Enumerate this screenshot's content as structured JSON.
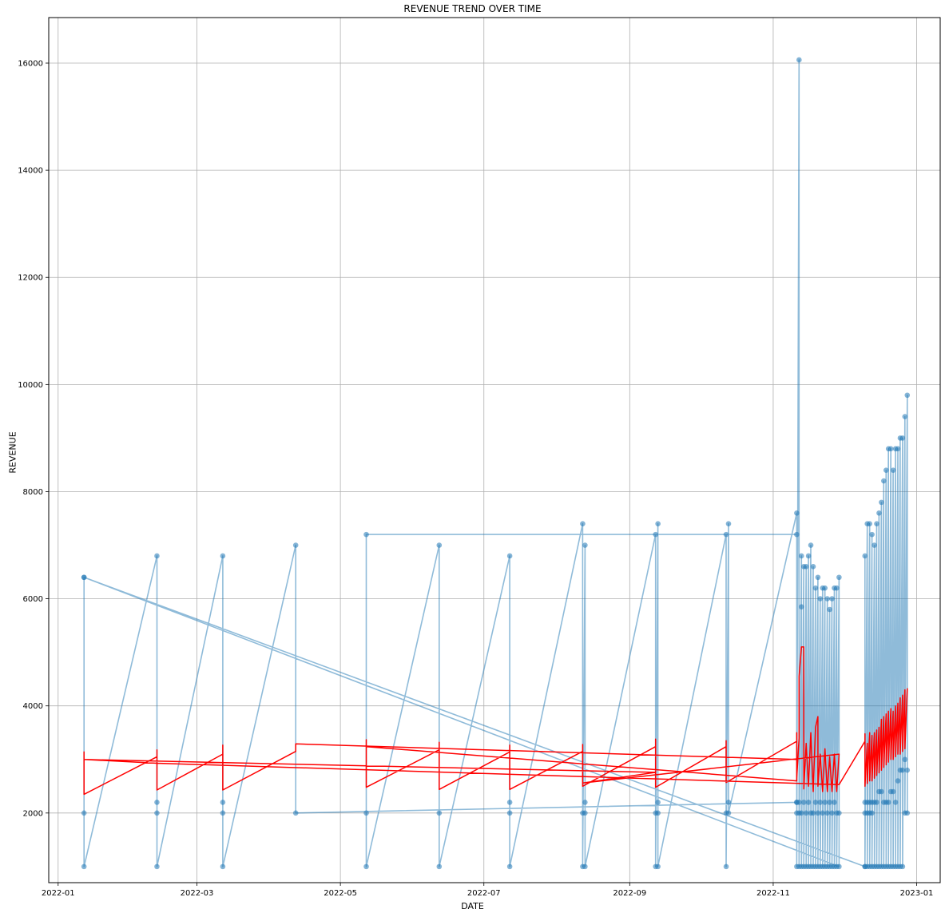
{
  "chart_data": {
    "type": "line",
    "title": "REVENUE TREND OVER TIME",
    "xlabel": "DATE",
    "ylabel": "REVENUE",
    "grid": true,
    "legend": "none",
    "x_axis_type": "date",
    "xlim": [
      "2021-12-28",
      "2023-01-11"
    ],
    "ylim": [
      700,
      16850
    ],
    "x_ticks": [
      "2022-01",
      "2022-03",
      "2022-05",
      "2022-07",
      "2022-09",
      "2022-11",
      "2023-01"
    ],
    "x_tick_dates": [
      "2022-01-01",
      "2022-03-01",
      "2022-05-01",
      "2022-07-01",
      "2022-09-01",
      "2022-11-01",
      "2023-01-01"
    ],
    "y_ticks": [
      2000,
      4000,
      6000,
      8000,
      10000,
      12000,
      14000,
      16000
    ],
    "colors": {
      "revenue": "#1f77b4",
      "trend": "#ff0000"
    },
    "series": [
      {
        "style": "line+markers",
        "points": [
          [
            "2022-01-12",
            6400
          ],
          [
            "2022-01-12",
            2000
          ],
          [
            "2022-01-12",
            1000
          ],
          [
            "2022-02-12",
            6800
          ],
          [
            "2022-02-12",
            2000
          ],
          [
            "2022-02-12",
            2200
          ],
          [
            "2022-02-12",
            1000
          ],
          [
            "2022-03-12",
            6800
          ],
          [
            "2022-03-12",
            2200
          ],
          [
            "2022-03-12",
            2000
          ],
          [
            "2022-03-12",
            1000
          ],
          [
            "2022-04-12",
            7000
          ],
          [
            "2022-04-12",
            2000
          ],
          [
            "2022-11-11",
            2200
          ],
          [
            "2022-11-11",
            7200
          ],
          [
            "2022-05-12",
            7200
          ],
          [
            "2022-05-12",
            2000
          ],
          [
            "2022-05-12",
            1000
          ],
          [
            "2022-06-12",
            7000
          ],
          [
            "2022-06-12",
            2000
          ],
          [
            "2022-06-12",
            1000
          ],
          [
            "2022-07-12",
            6800
          ],
          [
            "2022-07-12",
            2200
          ],
          [
            "2022-07-12",
            2000
          ],
          [
            "2022-07-12",
            1000
          ],
          [
            "2022-08-12",
            7400
          ],
          [
            "2022-08-12",
            2000
          ],
          [
            "2022-08-12",
            1000
          ],
          [
            "2022-08-13",
            7000
          ],
          [
            "2022-08-13",
            2200
          ],
          [
            "2022-08-13",
            2000
          ],
          [
            "2022-08-13",
            1000
          ],
          [
            "2022-09-12",
            7200
          ],
          [
            "2022-09-12",
            2000
          ],
          [
            "2022-09-12",
            1000
          ],
          [
            "2022-09-13",
            7400
          ],
          [
            "2022-09-13",
            2200
          ],
          [
            "2022-09-13",
            2000
          ],
          [
            "2022-09-13",
            1000
          ],
          [
            "2022-10-12",
            7200
          ],
          [
            "2022-10-12",
            2000
          ],
          [
            "2022-10-12",
            1000
          ],
          [
            "2022-10-13",
            7400
          ],
          [
            "2022-10-13",
            2200
          ],
          [
            "2022-10-13",
            2000
          ],
          [
            "2022-11-11",
            7600
          ],
          [
            "2022-11-11",
            2200
          ],
          [
            "2022-11-11",
            2000
          ],
          [
            "2022-11-11",
            1000
          ],
          [
            "2022-11-12",
            16060
          ],
          [
            "2022-11-12",
            2200
          ],
          [
            "2022-11-12",
            2000
          ],
          [
            "2022-11-12",
            1000
          ],
          [
            "2022-11-13",
            6800
          ],
          [
            "2022-11-13",
            5850
          ],
          [
            "2022-11-13",
            2000
          ],
          [
            "2022-11-13",
            1000
          ],
          [
            "2022-11-14",
            6600
          ],
          [
            "2022-11-14",
            2200
          ],
          [
            "2022-11-14",
            1000
          ],
          [
            "2022-11-15",
            6600
          ],
          [
            "2022-11-15",
            2000
          ],
          [
            "2022-11-15",
            1000
          ],
          [
            "2022-11-16",
            6800
          ],
          [
            "2022-11-16",
            2200
          ],
          [
            "2022-11-16",
            1000
          ],
          [
            "2022-11-17",
            7000
          ],
          [
            "2022-11-17",
            2000
          ],
          [
            "2022-11-17",
            1000
          ],
          [
            "2022-11-18",
            6600
          ],
          [
            "2022-11-18",
            2000
          ],
          [
            "2022-11-18",
            1000
          ],
          [
            "2022-11-19",
            6200
          ],
          [
            "2022-11-19",
            2200
          ],
          [
            "2022-11-19",
            1000
          ],
          [
            "2022-11-20",
            6400
          ],
          [
            "2022-11-20",
            2000
          ],
          [
            "2022-11-20",
            1000
          ],
          [
            "2022-11-21",
            6000
          ],
          [
            "2022-11-21",
            2200
          ],
          [
            "2022-11-21",
            1000
          ],
          [
            "2022-11-22",
            6200
          ],
          [
            "2022-11-22",
            2000
          ],
          [
            "2022-11-22",
            1000
          ],
          [
            "2022-11-23",
            6200
          ],
          [
            "2022-11-23",
            2200
          ],
          [
            "2022-11-23",
            1000
          ],
          [
            "2022-11-24",
            6000
          ],
          [
            "2022-11-24",
            2000
          ],
          [
            "2022-11-24",
            1000
          ],
          [
            "2022-11-25",
            5800
          ],
          [
            "2022-11-25",
            2200
          ],
          [
            "2022-11-25",
            1000
          ],
          [
            "2022-11-26",
            6000
          ],
          [
            "2022-11-26",
            2000
          ],
          [
            "2022-11-26",
            1000
          ],
          [
            "2022-11-27",
            6200
          ],
          [
            "2022-11-27",
            2200
          ],
          [
            "2022-11-27",
            1000
          ],
          [
            "2022-11-28",
            6200
          ],
          [
            "2022-11-28",
            2000
          ],
          [
            "2022-11-28",
            1000
          ],
          [
            "2022-11-29",
            6400
          ],
          [
            "2022-11-29",
            2000
          ],
          [
            "2022-11-29",
            1000
          ],
          [
            "2022-01-12",
            6400
          ],
          [
            "2022-12-10",
            1000
          ],
          [
            "2022-12-10",
            6800
          ],
          [
            "2022-12-10",
            2200
          ],
          [
            "2022-12-10",
            2000
          ],
          [
            "2022-12-10",
            1000
          ],
          [
            "2022-12-11",
            7400
          ],
          [
            "2022-12-11",
            2200
          ],
          [
            "2022-12-11",
            2000
          ],
          [
            "2022-12-11",
            1000
          ],
          [
            "2022-12-12",
            7400
          ],
          [
            "2022-12-12",
            2200
          ],
          [
            "2022-12-12",
            2000
          ],
          [
            "2022-12-12",
            1000
          ],
          [
            "2022-12-13",
            7200
          ],
          [
            "2022-12-13",
            2200
          ],
          [
            "2022-12-13",
            2000
          ],
          [
            "2022-12-13",
            1000
          ],
          [
            "2022-12-14",
            7000
          ],
          [
            "2022-12-14",
            2200
          ],
          [
            "2022-12-14",
            1000
          ],
          [
            "2022-12-15",
            7400
          ],
          [
            "2022-12-15",
            2200
          ],
          [
            "2022-12-15",
            1000
          ],
          [
            "2022-12-16",
            7600
          ],
          [
            "2022-12-16",
            2400
          ],
          [
            "2022-12-16",
            1000
          ],
          [
            "2022-12-17",
            7800
          ],
          [
            "2022-12-17",
            2400
          ],
          [
            "2022-12-17",
            1000
          ],
          [
            "2022-12-18",
            8200
          ],
          [
            "2022-12-18",
            2200
          ],
          [
            "2022-12-18",
            1000
          ],
          [
            "2022-12-19",
            8400
          ],
          [
            "2022-12-19",
            2200
          ],
          [
            "2022-12-19",
            1000
          ],
          [
            "2022-12-20",
            8800
          ],
          [
            "2022-12-20",
            2200
          ],
          [
            "2022-12-20",
            1000
          ],
          [
            "2022-12-21",
            8800
          ],
          [
            "2022-12-21",
            2400
          ],
          [
            "2022-12-21",
            1000
          ],
          [
            "2022-12-22",
            8400
          ],
          [
            "2022-12-22",
            2400
          ],
          [
            "2022-12-22",
            1000
          ],
          [
            "2022-12-23",
            8800
          ],
          [
            "2022-12-23",
            2200
          ],
          [
            "2022-12-23",
            1000
          ],
          [
            "2022-12-24",
            8800
          ],
          [
            "2022-12-24",
            2600
          ],
          [
            "2022-12-24",
            1000
          ],
          [
            "2022-12-25",
            9000
          ],
          [
            "2022-12-25",
            2800
          ],
          [
            "2022-12-25",
            1000
          ],
          [
            "2022-12-26",
            9000
          ],
          [
            "2022-12-26",
            2800
          ],
          [
            "2022-12-26",
            1000
          ],
          [
            "2022-12-27",
            9400
          ],
          [
            "2022-12-27",
            3000
          ],
          [
            "2022-12-27",
            2000
          ],
          [
            "2022-12-28",
            9800
          ],
          [
            "2022-12-28",
            2800
          ],
          [
            "2022-12-28",
            2000
          ]
        ]
      },
      {
        "style": "line",
        "points": [
          [
            "2022-01-12",
            3150
          ],
          [
            "2022-01-12",
            2350
          ],
          [
            "2022-02-12",
            3050
          ],
          [
            "2022-02-12",
            3180
          ],
          [
            "2022-02-12",
            2430
          ],
          [
            "2022-03-12",
            3100
          ],
          [
            "2022-03-12",
            3270
          ],
          [
            "2022-03-12",
            2430
          ],
          [
            "2022-04-12",
            3150
          ],
          [
            "2022-04-12",
            3290
          ],
          [
            "2022-11-11",
            3000
          ],
          [
            "2022-11-11",
            2600
          ],
          [
            "2022-05-12",
            3240
          ],
          [
            "2022-05-12",
            3370
          ],
          [
            "2022-05-12",
            2480
          ],
          [
            "2022-06-12",
            3180
          ],
          [
            "2022-06-12",
            3320
          ],
          [
            "2022-06-12",
            2440
          ],
          [
            "2022-07-12",
            3140
          ],
          [
            "2022-07-12",
            3270
          ],
          [
            "2022-07-12",
            2440
          ],
          [
            "2022-08-12",
            3150
          ],
          [
            "2022-08-12",
            3280
          ],
          [
            "2022-08-12",
            2500
          ],
          [
            "2022-09-12",
            3240
          ],
          [
            "2022-09-12",
            3380
          ],
          [
            "2022-09-12",
            2480
          ],
          [
            "2022-10-12",
            3240
          ],
          [
            "2022-10-12",
            3350
          ],
          [
            "2022-10-12",
            2570
          ],
          [
            "2022-11-11",
            3340
          ],
          [
            "2022-11-11",
            3500
          ],
          [
            "2022-11-11",
            2650
          ],
          [
            "2022-11-12",
            3400
          ],
          [
            "2022-11-12",
            4550
          ],
          [
            "2022-11-13",
            5100
          ],
          [
            "2022-11-14",
            5100
          ],
          [
            "2022-11-14",
            2450
          ],
          [
            "2022-11-15",
            3300
          ],
          [
            "2022-11-16",
            2500
          ],
          [
            "2022-11-17",
            3500
          ],
          [
            "2022-11-18",
            2400
          ],
          [
            "2022-11-19",
            3600
          ],
          [
            "2022-11-20",
            3800
          ],
          [
            "2022-11-20",
            2500
          ],
          [
            "2022-11-21",
            3100
          ],
          [
            "2022-11-22",
            2400
          ],
          [
            "2022-11-23",
            3200
          ],
          [
            "2022-11-24",
            2400
          ],
          [
            "2022-11-25",
            3050
          ],
          [
            "2022-11-26",
            2400
          ],
          [
            "2022-11-27",
            3100
          ],
          [
            "2022-11-28",
            2400
          ],
          [
            "2022-11-29",
            3100
          ],
          [
            "2022-08-12",
            2560
          ],
          [
            "2022-09-12",
            2760
          ],
          [
            "2022-01-12",
            3000
          ],
          [
            "2022-02-12",
            2930
          ],
          [
            "2022-11-29",
            2530
          ],
          [
            "2022-12-10",
            3340
          ],
          [
            "2022-12-10",
            3480
          ],
          [
            "2022-12-10",
            2500
          ],
          [
            "2022-12-11",
            3300
          ],
          [
            "2022-12-11",
            2550
          ],
          [
            "2022-12-12",
            3500
          ],
          [
            "2022-12-12",
            2600
          ],
          [
            "2022-12-13",
            3450
          ],
          [
            "2022-12-13",
            2600
          ],
          [
            "2022-12-14",
            3500
          ],
          [
            "2022-12-14",
            2650
          ],
          [
            "2022-12-15",
            3550
          ],
          [
            "2022-12-15",
            2700
          ],
          [
            "2022-12-16",
            3600
          ],
          [
            "2022-12-16",
            2750
          ],
          [
            "2022-12-17",
            3750
          ],
          [
            "2022-12-17",
            2800
          ],
          [
            "2022-12-18",
            3800
          ],
          [
            "2022-12-18",
            2850
          ],
          [
            "2022-12-19",
            3850
          ],
          [
            "2022-12-19",
            2900
          ],
          [
            "2022-12-20",
            3900
          ],
          [
            "2022-12-20",
            2950
          ],
          [
            "2022-12-21",
            3950
          ],
          [
            "2022-12-21",
            3000
          ],
          [
            "2022-12-22",
            3900
          ],
          [
            "2022-12-22",
            3000
          ],
          [
            "2022-12-23",
            4000
          ],
          [
            "2022-12-23",
            3050
          ],
          [
            "2022-12-24",
            4050
          ],
          [
            "2022-12-24",
            3100
          ],
          [
            "2022-12-25",
            4150
          ],
          [
            "2022-12-25",
            3100
          ],
          [
            "2022-12-26",
            4200
          ],
          [
            "2022-12-26",
            3150
          ],
          [
            "2022-12-27",
            4300
          ],
          [
            "2022-12-27",
            3200
          ],
          [
            "2022-12-28",
            4330
          ]
        ]
      }
    ]
  }
}
